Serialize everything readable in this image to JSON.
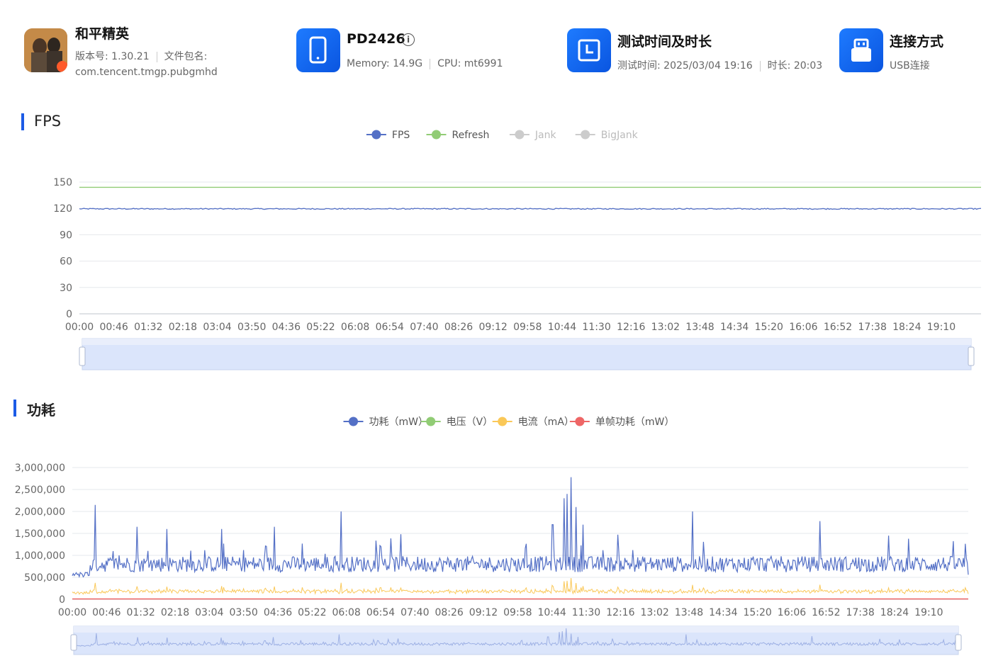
{
  "header": {
    "app": {
      "name": "和平精英",
      "version_label": "版本号: 1.30.21",
      "package_label": "文件包名:",
      "package": "com.tencent.tmgp.pubgmhd"
    },
    "device": {
      "name": "PD2426",
      "info_icon": "info-circle-icon",
      "memory": "Memory: 14.9G",
      "cpu": "CPU: mt6991"
    },
    "test": {
      "title": "测试时间及时长",
      "time": "测试时间: 2025/03/04 19:16",
      "duration": "时长: 20:03"
    },
    "connection": {
      "title": "连接方式",
      "value": "USB连接"
    }
  },
  "sections": {
    "fps": {
      "title": "FPS"
    },
    "power": {
      "title": "功耗"
    }
  },
  "colors": {
    "accent": "#1c5be6",
    "fps": "#5470c6",
    "refresh": "#91cc75",
    "current": "#fac858",
    "frame_power": "#ee6666",
    "disabled": "#cccccc"
  },
  "chart_data": [
    {
      "type": "line",
      "legend": [
        {
          "name": "FPS",
          "color": "#5470c6",
          "active": true
        },
        {
          "name": "Refresh",
          "color": "#91cc75",
          "active": true
        },
        {
          "name": "Jank",
          "color": "#cccccc",
          "active": false
        },
        {
          "name": "BigJank",
          "color": "#cccccc",
          "active": false
        }
      ],
      "x_ticks": [
        "00:00",
        "00:46",
        "01:32",
        "02:18",
        "03:04",
        "03:50",
        "04:36",
        "05:22",
        "06:08",
        "06:54",
        "07:40",
        "08:26",
        "09:12",
        "09:58",
        "10:44",
        "11:30",
        "12:16",
        "13:02",
        "13:48",
        "14:34",
        "15:20",
        "16:06",
        "16:52",
        "17:38",
        "18:24",
        "19:10"
      ],
      "y_ticks": [
        "0",
        "30",
        "60",
        "90",
        "120",
        "150"
      ],
      "ylim": [
        0,
        150
      ],
      "xlim_minutes": [
        0,
        20.05
      ],
      "series": [
        {
          "name": "FPS",
          "values_description_approx": 119.5,
          "level": 119.5,
          "noise": 0.6
        },
        {
          "name": "Refresh",
          "level": 144
        }
      ],
      "grid": true,
      "legend_position": "top-center",
      "data_zoom": true
    },
    {
      "type": "line",
      "legend": [
        {
          "name": "功耗（mW）",
          "color": "#5470c6",
          "active": true
        },
        {
          "name": "电压（V）",
          "color": "#91cc75",
          "active": true
        },
        {
          "name": "电流（mA）",
          "color": "#fac858",
          "active": true
        },
        {
          "name": "单帧功耗（mW）",
          "color": "#ee6666",
          "active": true
        }
      ],
      "x_ticks": [
        "00:00",
        "00:46",
        "01:32",
        "02:18",
        "03:04",
        "03:50",
        "04:36",
        "05:22",
        "06:08",
        "06:54",
        "07:40",
        "08:26",
        "09:12",
        "09:58",
        "10:44",
        "11:30",
        "12:16",
        "13:02",
        "13:48",
        "14:34",
        "15:20",
        "16:06",
        "16:52",
        "17:38",
        "18:24",
        "19:10"
      ],
      "y_ticks": [
        "0",
        "500,000",
        "1,000,000",
        "1,500,000",
        "2,000,000",
        "2,500,000",
        "3,000,000"
      ],
      "ylim": [
        0,
        3000000
      ],
      "xlim_minutes": [
        0,
        20.05
      ],
      "series": [
        {
          "name": "功耗（mW）",
          "baseline": 800000,
          "noise": 180000,
          "spikes": [
            {
              "t": 0.52,
              "v": 2150000
            },
            {
              "t": 1.45,
              "v": 1650000
            },
            {
              "t": 2.12,
              "v": 1600000
            },
            {
              "t": 3.35,
              "v": 1600000
            },
            {
              "t": 4.52,
              "v": 1650000
            },
            {
              "t": 6.02,
              "v": 2000000
            },
            {
              "t": 7.35,
              "v": 1480000
            },
            {
              "t": 10.75,
              "v": 1700000
            },
            {
              "t": 11.0,
              "v": 2300000
            },
            {
              "t": 11.08,
              "v": 2400000
            },
            {
              "t": 11.16,
              "v": 2780000
            },
            {
              "t": 11.28,
              "v": 2100000
            },
            {
              "t": 11.42,
              "v": 1700000
            },
            {
              "t": 13.88,
              "v": 2000000
            },
            {
              "t": 16.73,
              "v": 1780000
            },
            {
              "t": 18.27,
              "v": 1450000
            }
          ],
          "end_value": 560000
        },
        {
          "name": "电流（mA）",
          "baseline": 180000,
          "noise": 30000,
          "spike_scale": 0.14
        },
        {
          "name": "单帧功耗（mW）",
          "level": 0
        },
        {
          "name": "电压（V）",
          "level": 5
        }
      ],
      "grid": true,
      "legend_position": "top-center",
      "data_zoom": true
    }
  ]
}
